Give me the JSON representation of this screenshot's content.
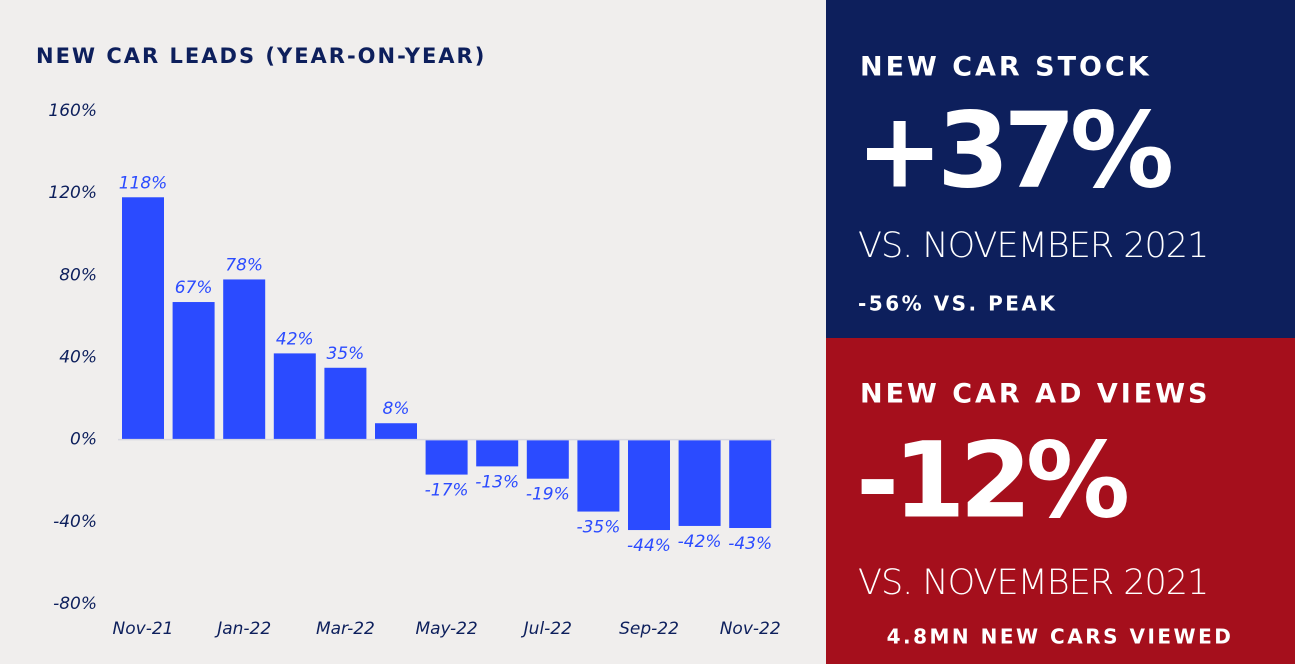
{
  "chart_data": {
    "type": "bar",
    "title": "NEW CAR LEADS (YEAR-ON-YEAR)",
    "categories": [
      "Nov-21",
      null,
      "Jan-22",
      null,
      "Mar-22",
      null,
      "May-22",
      null,
      "Jul-22",
      null,
      "Sep-22",
      null,
      "Nov-22"
    ],
    "values": [
      118,
      67,
      78,
      42,
      35,
      8,
      -17,
      -13,
      -19,
      -35,
      -44,
      -42,
      -43
    ],
    "value_labels": [
      "118%",
      "67%",
      "78%",
      "42%",
      "35%",
      "8%",
      "-17%",
      "-13%",
      "-19%",
      "-35%",
      "-44%",
      "-42%",
      "-43%"
    ],
    "color": "#2b4bff",
    "ylim": [
      -80,
      160
    ],
    "yticks": [
      {
        "value": -80,
        "label": "-80%"
      },
      {
        "value": -40,
        "label": "-40%"
      },
      {
        "value": 0,
        "label": "0%"
      },
      {
        "value": 40,
        "label": "40%"
      },
      {
        "value": 80,
        "label": "80%"
      },
      {
        "value": 120,
        "label": "120%"
      },
      {
        "value": 160,
        "label": "160%"
      }
    ],
    "grid": false
  },
  "panels": [
    {
      "heading": "NEW CAR STOCK",
      "figure": "+37%",
      "comparison": "VS. NOVEMBER 2021",
      "note": "-56% VS. PEAK"
    },
    {
      "heading": "NEW CAR AD VIEWS",
      "figure": "-12%",
      "comparison": "VS. NOVEMBER 2021",
      "note": "4.8MN NEW CARS VIEWED"
    }
  ]
}
